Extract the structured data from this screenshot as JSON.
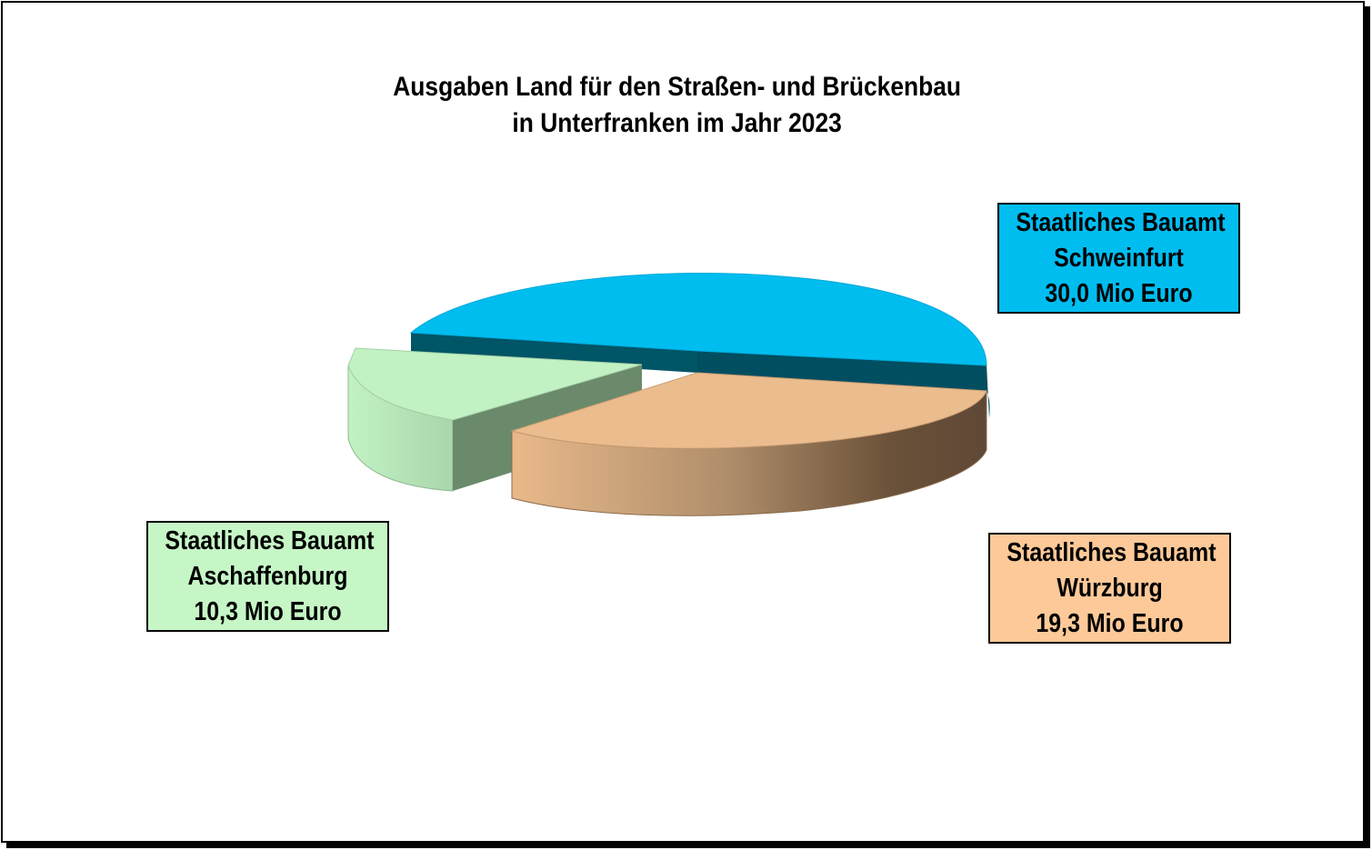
{
  "chart_data": {
    "type": "pie",
    "title": "Ausgaben Land für den Straßen- und Brückenbau",
    "subtitle": "in Unterfranken im Jahr 2023",
    "slices": [
      {
        "line1": "Staatliches Bauamt",
        "line2": "Schweinfurt",
        "line3": "30,0 Mio Euro",
        "value": 30.0,
        "color": "#00bdf0"
      },
      {
        "line1": "Staatliches Bauamt",
        "line2": "Würzburg",
        "line3": "19,3 Mio Euro",
        "value": 19.3,
        "color": "#f9c89a"
      },
      {
        "line1": "Staatliches Bauamt",
        "line2": "Aschaffenburg",
        "line3": "10,3 Mio Euro",
        "value": 10.3,
        "color": "#c2f2c4"
      }
    ]
  }
}
